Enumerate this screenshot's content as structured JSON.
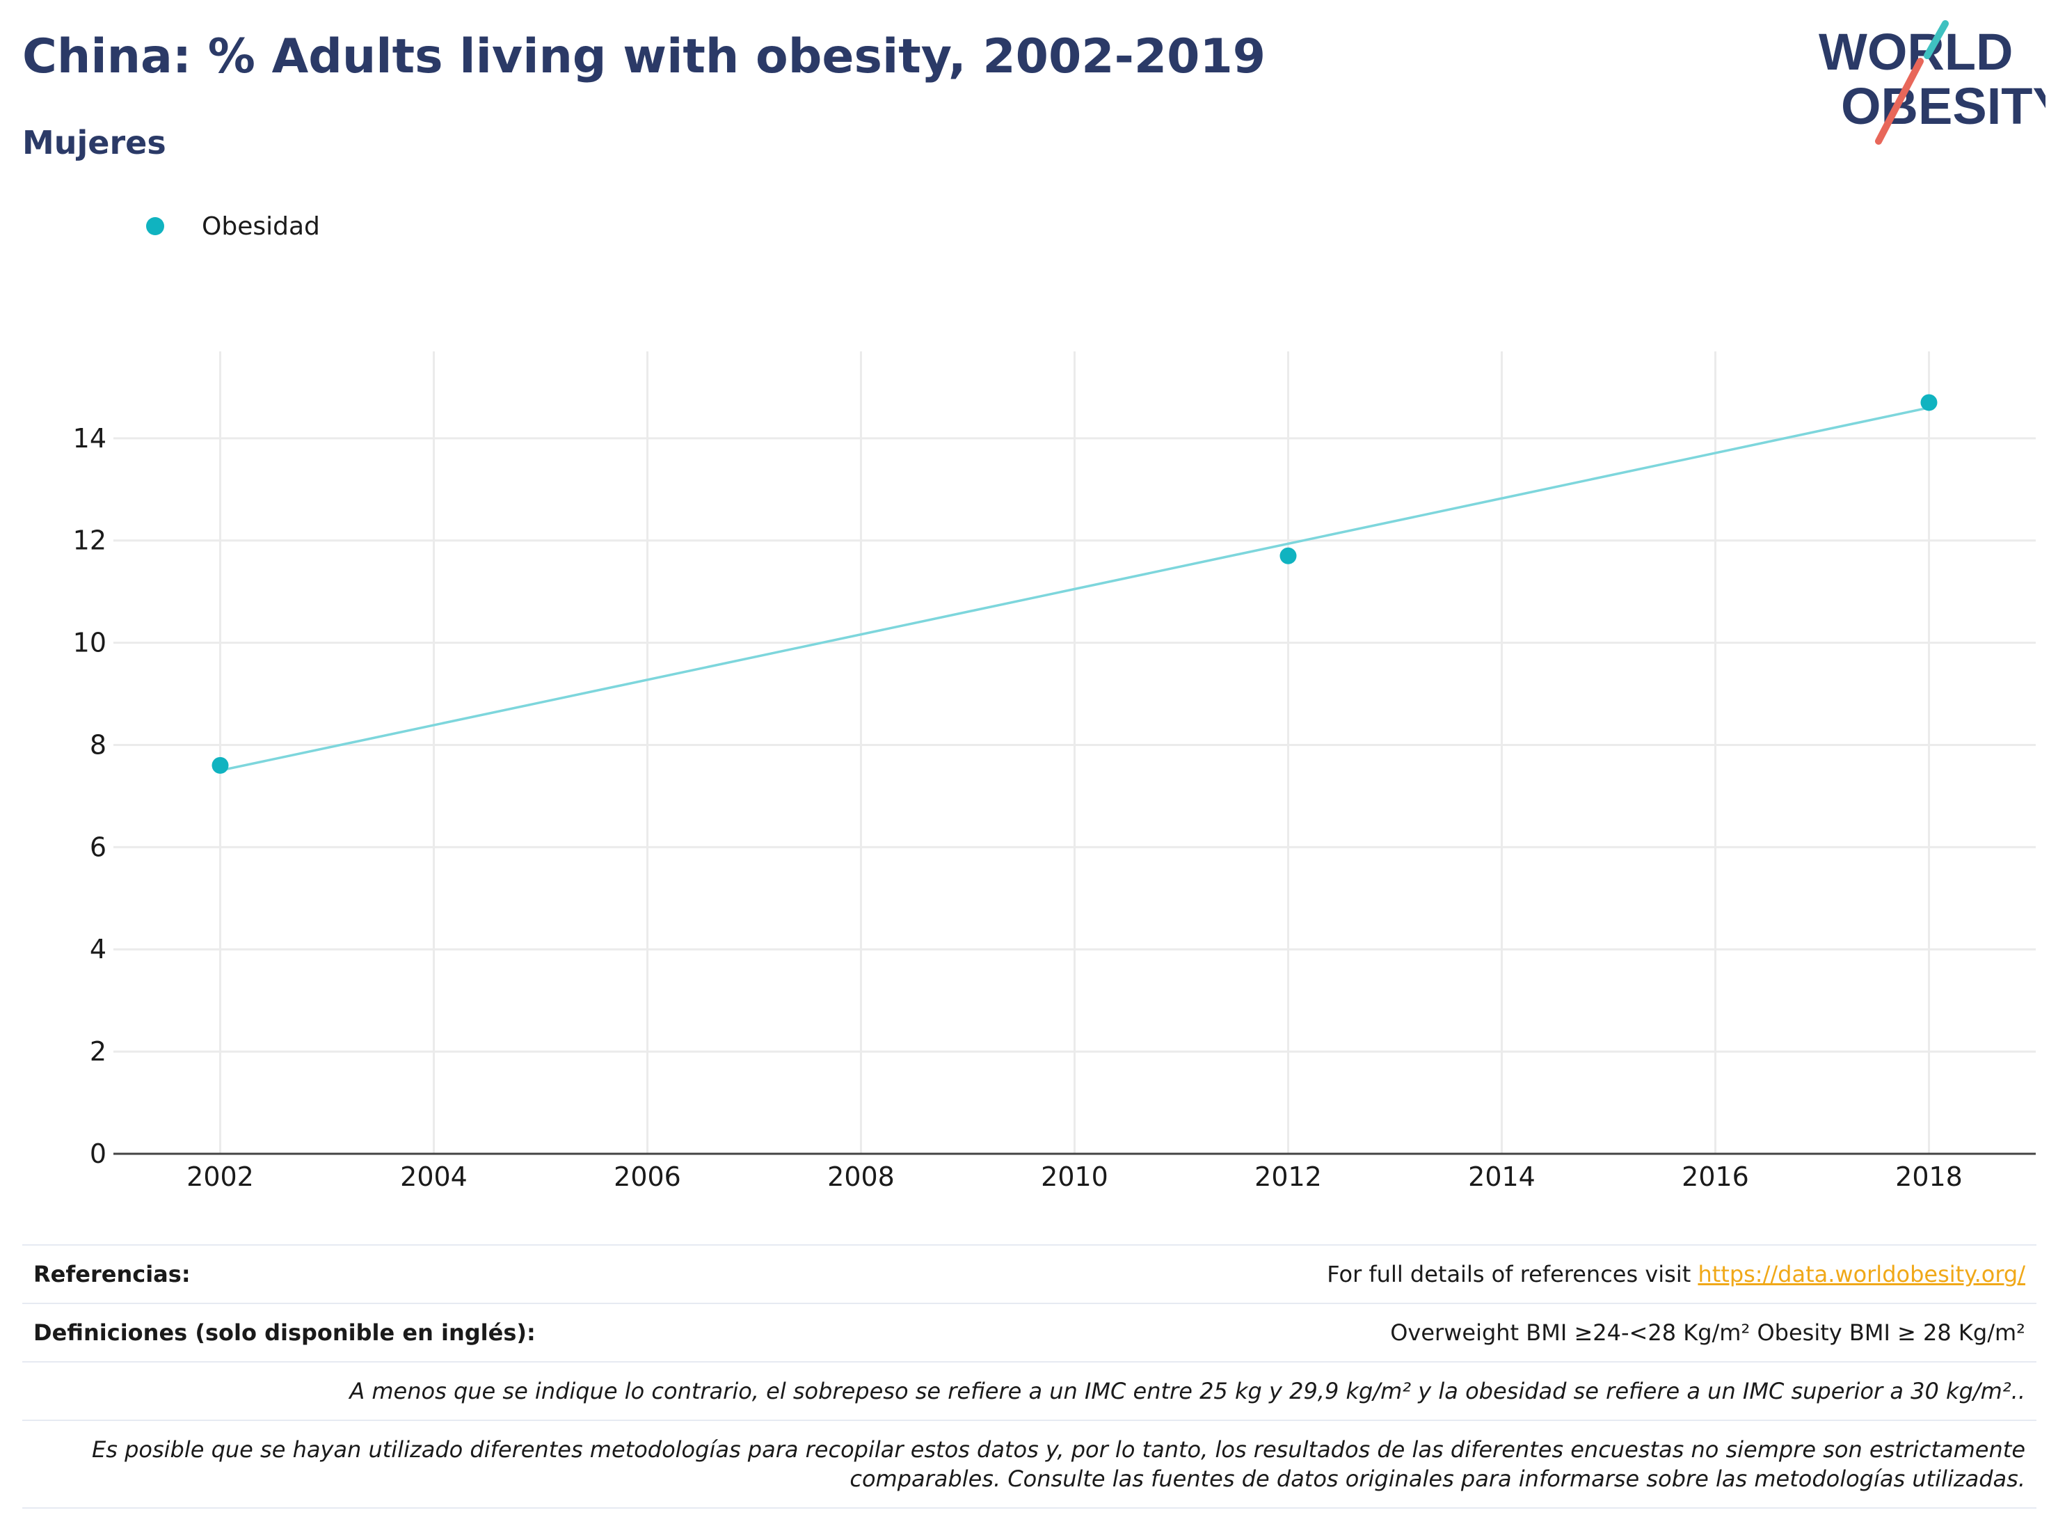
{
  "header": {
    "title": "China: % Adults living with obesity, 2002-2019",
    "subtitle": "Mujeres"
  },
  "logo": {
    "line1": "WORLD",
    "line2": "OBESITY"
  },
  "colors": {
    "title": "#2b3a67",
    "series": "#10b3c0",
    "trend": "#7dd6dc",
    "link": "#f0a818",
    "grid": "#ebebeb"
  },
  "chart_data": {
    "type": "scatter",
    "series": [
      {
        "name": "Obesidad",
        "x": [
          2002,
          2012,
          2018
        ],
        "y": [
          7.6,
          11.7,
          14.7
        ]
      }
    ],
    "trendline": {
      "x": [
        2002,
        2018
      ],
      "y": [
        7.5,
        14.6
      ]
    },
    "xticks": [
      2002,
      2004,
      2006,
      2008,
      2010,
      2012,
      2014,
      2016,
      2018
    ],
    "yticks": [
      0,
      2,
      4,
      6,
      8,
      10,
      12,
      14
    ],
    "xlim": [
      2001,
      2019
    ],
    "ylim": [
      0,
      15.7
    ],
    "grid": true,
    "legend_position": "top-left"
  },
  "footer": {
    "references_label": "Referencias:",
    "references_text": "For full details of references visit ",
    "references_link": "https://data.worldobesity.org/",
    "definitions_label": "Definiciones (solo disponible en inglés):",
    "definitions_text": "Overweight BMI ≥24-<28 Kg/m² Obesity BMI ≥ 28 Kg/m²",
    "note1": "A menos que se indique lo contrario, el sobrepeso se refiere a un IMC entre 25 kg y 29,9 kg/m² y la obesidad se refiere a un IMC superior a 30 kg/m²..",
    "note2_line1": "Es posible que se hayan utilizado diferentes metodologías para recopilar estos datos y, por lo tanto, los resultados de las diferentes encuestas no siempre son estrictamente",
    "note2_line2": "comparables. Consulte las fuentes de datos originales para informarse sobre las metodologías utilizadas."
  }
}
